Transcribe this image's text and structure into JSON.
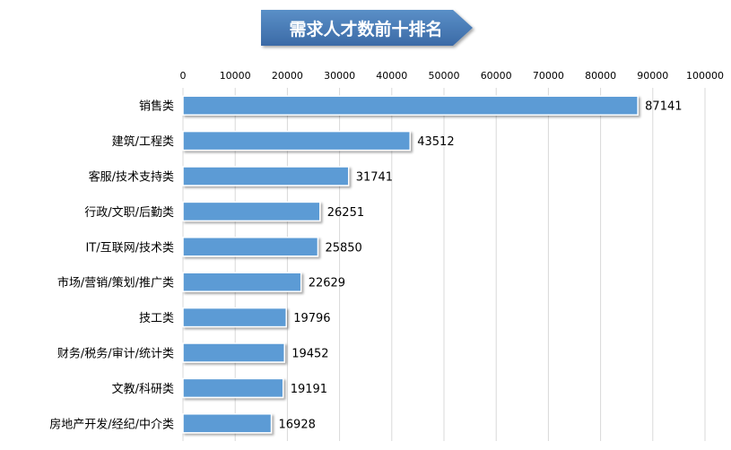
{
  "chart_data": {
    "type": "bar",
    "orientation": "horizontal",
    "title": "需求人才数前十排名",
    "categories": [
      "销售类",
      "建筑/工程类",
      "客服/技术支持类",
      "行政/文职/后勤类",
      "IT/互联网/技术类",
      "市场/营销/策划/推广类",
      "技工类",
      "财务/税务/审计/统计类",
      "文教/科研类",
      "房地产开发/经纪/中介类"
    ],
    "values": [
      87141,
      43512,
      31741,
      26251,
      25850,
      22629,
      19796,
      19452,
      19191,
      16928
    ],
    "xlim": [
      0,
      100000
    ],
    "xticks": [
      0,
      10000,
      20000,
      30000,
      40000,
      50000,
      60000,
      70000,
      80000,
      90000,
      100000
    ],
    "axis_position": "top",
    "data_labels": true,
    "grid": "vertical",
    "legend": "none"
  },
  "colors": {
    "bar_fill": "#5b9bd5",
    "bar_stroke": "#ffffff",
    "grid": "#d9d9d9",
    "title_fill_top": "#5a8fc7",
    "title_fill_bottom": "#3b6aa6",
    "title_text": "#ffffff",
    "text": "#000000"
  }
}
